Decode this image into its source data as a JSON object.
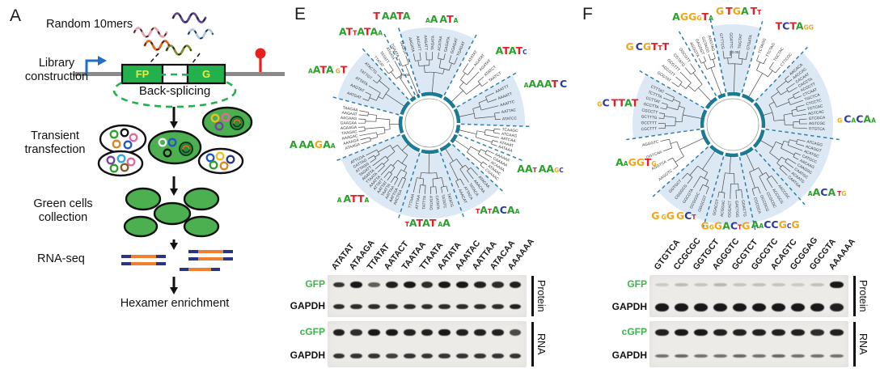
{
  "colors": {
    "accent_green": "#3cb54a",
    "construct_green": "#22b14c",
    "promoter_blue": "#1f6fc4",
    "terminator_red": "#e8201c",
    "backbone_gray": "#8a8a8a",
    "gene_label_yellow": "#f2e93c",
    "wedge_blue": "#dce9f5",
    "dash_blue": "#2e7fae",
    "arc_teal": "#1b7b96",
    "logo_A": "#2ba02b",
    "logo_T": "#e11f26",
    "logo_C": "#2b3a9f",
    "logo_G": "#f0a51a",
    "read_navy": "#2a3580",
    "read_orange": "#f08030",
    "band_black": "#0d0d0d"
  },
  "panelA": {
    "letter": "A",
    "labels": {
      "random_10mers": "Random 10mers",
      "library_construction": "Library construction",
      "fp": "FP",
      "g": "G",
      "back_splicing": "Back-splicing",
      "transient_transfection": "Transient transfection",
      "green_cells_collection": "Green cells collection",
      "rna_seq": "RNA-seq",
      "hexamer_enrichment": "Hexamer enrichment"
    }
  },
  "panelE": {
    "letter": "E",
    "tree": {
      "scale_label": "0.05",
      "sectors": [
        {
          "a0": -18,
          "a1": 28,
          "shaded": true,
          "logo": {
            "text": "aA.ATa",
            "angle": 7,
            "r": 125
          },
          "leaves": [
            "AAGATA",
            "AACATT",
            "AAGATT",
            "TAGATA",
            "ACATAA",
            "GAGATA",
            "GGAGAT",
            "TGAGAT"
          ]
        },
        {
          "a0": 28,
          "a1": 60,
          "shaded": false,
          "logo": {
            "text": "ATATc",
            "angle": 50,
            "r": 132
          },
          "leaves": [
            "ATATAT",
            "AGATAT",
            "AGATAT",
            "ATATCT",
            "TAATCT"
          ]
        },
        {
          "a0": 60,
          "a1": 92,
          "shaded": true,
          "logo": {
            "text": "aAAAT.C",
            "angle": 73,
            "r": 150
          },
          "leaves": [
            "AAATTT",
            "AAAATT",
            "AAATTC",
            "AATTAC",
            "ATATCC"
          ]
        },
        {
          "a0": 92,
          "a1": 112,
          "shaded": false,
          "logo": null,
          "leaves": [
            "TCAAGC",
            "ATCAAG",
            "AATCAA",
            "ATAAAT",
            "AATAAA"
          ]
        },
        {
          "a0": 112,
          "a1": 133,
          "shaded": false,
          "logo": {
            "text": "AAt.AAgc",
            "angle": 114,
            "r": 150
          },
          "leaves": [
            "AAAAAA",
            "CAAAAA",
            "ACAAAA",
            "ATAAAC",
            "CGAAAC"
          ]
        },
        {
          "a0": 133,
          "a1": 160,
          "shaded": true,
          "logo": {
            "text": "tAtACAa",
            "angle": 143,
            "r": 140
          },
          "leaves": [
            "ATACAA",
            "AAACAA",
            "TATACA",
            "ATTACA",
            "AAACAT"
          ]
        },
        {
          "a0": 160,
          "a1": 198,
          "shaded": true,
          "logo": {
            "text": "tATAT.aA",
            "angle": 181,
            "r": 128
          },
          "leaves": [
            "TATATG",
            "TATATC",
            "CATATA",
            "ATATAG",
            "TATTTA",
            "ATTTAA",
            "TTTAAA"
          ]
        },
        {
          "a0": 198,
          "a1": 248,
          "shaded": true,
          "logo": {
            "text": "a.ATTa",
            "angle": 224,
            "r": 136
          },
          "leaves": [
            "AACTGA",
            "AATTGA",
            "AATTAA",
            "TAATTA",
            "AATTAT",
            "ATTATT",
            "AAATTA",
            "TTAATA",
            "AGATTA",
            "TAGATT",
            "ATTAGG",
            "CATTAG",
            "ATTCGA"
          ]
        },
        {
          "a0": 248,
          "a1": 285,
          "shaded": false,
          "logo": {
            "text": "A.AAGAa",
            "angle": 258,
            "r": 148
          },
          "leaves": [
            "ATAAGA",
            "AAAAGA",
            "AAAGAC",
            "TAAGAC",
            "AGAAGA",
            "GAAGAA",
            "AAGAAG",
            "AAGAAT",
            "TAAGAA"
          ]
        },
        {
          "a0": 285,
          "a1": 318,
          "shaded": true,
          "logo": {
            "text": "aATA.gT",
            "angle": 296,
            "r": 140
          },
          "leaves": [
            "AATGAT",
            "AAGTAT",
            "ATTATA",
            "TATTGT",
            "ATACTG"
          ]
        },
        {
          "a0": 318,
          "a1": 333,
          "shaded": false,
          "logo": {
            "text": "ATtATAa",
            "angle": 322,
            "r": 138
          },
          "leaves": [
            "TTATAT",
            "TATATT",
            "ATAATA"
          ]
        },
        {
          "a0": 333,
          "a1": 342,
          "shaded": false,
          "logo": {
            "text": "T.AATA",
            "angle": 340,
            "r": 136
          },
          "leaves": [
            "TGAATA",
            "TAAATA"
          ]
        }
      ]
    },
    "blot": {
      "columns": [
        "ATATAT",
        "ATAAGA",
        "TTATAT",
        "AATACT",
        "TAATAA",
        "TTAATA",
        "AATATA",
        "AAATAC",
        "AATTAA",
        "ATACAA",
        "AAAAAA"
      ],
      "rows": [
        {
          "label": "GFP",
          "color": "#3cb54a",
          "bands": [
            0.8,
            0.95,
            0.6,
            0.9,
            0.95,
            0.85,
            0.95,
            0.95,
            0.9,
            0.85,
            0.9
          ]
        },
        {
          "label": "GAPDH",
          "color": "#111111",
          "bands": [
            0.85,
            0.85,
            0.85,
            0.85,
            0.85,
            0.85,
            0.85,
            0.85,
            0.85,
            0.85,
            0.9
          ]
        },
        {
          "label": "cGFP",
          "color": "#3cb54a",
          "bands": [
            0.9,
            0.85,
            0.95,
            0.95,
            0.9,
            0.9,
            0.95,
            0.9,
            0.9,
            0.9,
            0.7
          ]
        },
        {
          "label": "GAPDH",
          "color": "#111111",
          "bands": [
            0.8,
            0.8,
            0.8,
            0.75,
            0.8,
            0.8,
            0.8,
            0.8,
            0.8,
            0.8,
            0.8
          ]
        }
      ],
      "groups": [
        "Protein",
        "RNA"
      ]
    }
  },
  "panelF": {
    "letter": "F",
    "tree": {
      "scale_label": "0.05",
      "sectors": [
        {
          "a0": -12,
          "a1": 16,
          "shaded": true,
          "logo": {
            "text": "G.TGA.Tt",
            "angle": 3,
            "r": 136
          },
          "leaves": [
            "GTTTCG",
            "GGATTC",
            "TGGTAT",
            "GTGATA"
          ]
        },
        {
          "a0": 16,
          "a1": 44,
          "shaded": false,
          "logo": {
            "text": "TCTAgg",
            "angle": 33,
            "r": 140
          },
          "leaves": [
            "TCTAGG",
            "TTCTAG",
            "TGCTAC",
            "CTTCGC"
          ]
        },
        {
          "a0": 44,
          "a1": 98,
          "shaded": true,
          "logo": {
            "text": "g.CaCAa",
            "angle": 89,
            "r": 153
          },
          "leaves": [
            "AACACA",
            "AACCAC",
            "CACAAT",
            "CACCTA",
            "ACGCTT",
            "CTCAAT",
            "TGCTCA",
            "CTCCTC",
            "TGTCAC",
            "AGTCAC",
            "GTCGCA",
            "AGTCGC",
            "GTGTCA"
          ]
        },
        {
          "a0": 98,
          "a1": 138,
          "shaded": true,
          "logo": {
            "text": "aACA.tg",
            "angle": 127,
            "r": 146
          },
          "leaves": [
            "ATCAGG",
            "ACAGGT",
            "ACATGC",
            "CATGCC",
            "AACAAG",
            "CAAGGC",
            "CAATGC",
            "ACAATG",
            "CAATGA"
          ]
        },
        {
          "a0": 138,
          "a1": 168,
          "shaded": true,
          "logo": {
            "text": ".AaCCGcG",
            "angle": 158,
            "r": 138
          },
          "leaves": [
            "AACCGC",
            "ACCGCG",
            "CCGCGC",
            "GCCGCG",
            "CGCGCA"
          ]
        },
        {
          "a0": 168,
          "a1": 196,
          "shaded": true,
          "logo": {
            "text": "GgGACtG",
            "angle": 184,
            "r": 130
          },
          "leaves": [
            "GGACTG",
            "GACTGG",
            "GGGACT",
            "ACGGAC",
            "GGACGT"
          ]
        },
        {
          "a0": 196,
          "a1": 228,
          "shaded": true,
          "logo": {
            "text": "G.gG.GCt",
            "angle": 212,
            "r": 138
          },
          "leaves": [
            "GGGCGT",
            "GCGGGC",
            "GGCGTA",
            "CGGGCG",
            "GGTGCT"
          ]
        },
        {
          "a0": 228,
          "a1": 262,
          "shaded": false,
          "logo": {
            "text": "AaGGTg",
            "angle": 247,
            "r": 130
          },
          "leaves": [
            "AAGGTC",
            "AGGTCA",
            "GGTCAA",
            "AGGGTC"
          ]
        },
        {
          "a0": 262,
          "a1": 300,
          "shaded": true,
          "logo": {
            "text": "gC.TTAT",
            "angle": 279,
            "r": 144
          },
          "leaves": [
            "CGCTTT",
            "GCCTTT",
            "GCTTTG",
            "CGCCTT",
            "GCCTTA",
            "CCTTAT",
            "TCTTTA",
            "CTTTAT"
          ]
        },
        {
          "a0": 300,
          "a1": 330,
          "shaded": false,
          "logo": {
            "text": "G.CGTtT",
            "angle": 311,
            "r": 140
          },
          "leaves": [
            "GCGTAT",
            "AGCGTT",
            "GCGTTT",
            "CGTATG",
            "GGCGTT"
          ]
        },
        {
          "a0": 330,
          "a1": 348,
          "shaded": false,
          "logo": {
            "text": "AGGgTa",
            "angle": 339,
            "r": 138
          },
          "leaves": [
            "AGGGTA",
            "GAGGGT",
            "GGTAGG",
            "AGGTAG"
          ]
        }
      ]
    },
    "blot": {
      "columns": [
        "GTGTCA",
        "CCGCGC",
        "GGTGCT",
        "AGGGTC",
        "GCGTCT",
        "GGCGTC",
        "ACAGTC",
        "GCGGAG",
        "GGCGTA",
        "AAAAAA"
      ],
      "rows": [
        {
          "label": "GFP",
          "color": "#3cb54a",
          "bands": [
            0.06,
            0.14,
            0.1,
            0.16,
            0.1,
            0.12,
            0.1,
            0.07,
            0.12,
            0.95
          ]
        },
        {
          "label": "GAPDH",
          "color": "#111111",
          "bands": [
            0.95,
            0.95,
            0.95,
            0.95,
            0.95,
            0.95,
            0.95,
            0.95,
            0.95,
            0.9
          ]
        },
        {
          "label": "cGFP",
          "color": "#3cb54a",
          "bands": [
            0.9,
            0.95,
            0.95,
            0.9,
            0.9,
            0.9,
            0.9,
            0.9,
            0.85,
            0.9
          ]
        },
        {
          "label": "GAPDH",
          "color": "#111111",
          "bands": [
            0.5,
            0.55,
            0.5,
            0.5,
            0.55,
            0.5,
            0.55,
            0.5,
            0.5,
            0.5
          ]
        }
      ],
      "groups": [
        "Protein",
        "RNA"
      ]
    }
  }
}
